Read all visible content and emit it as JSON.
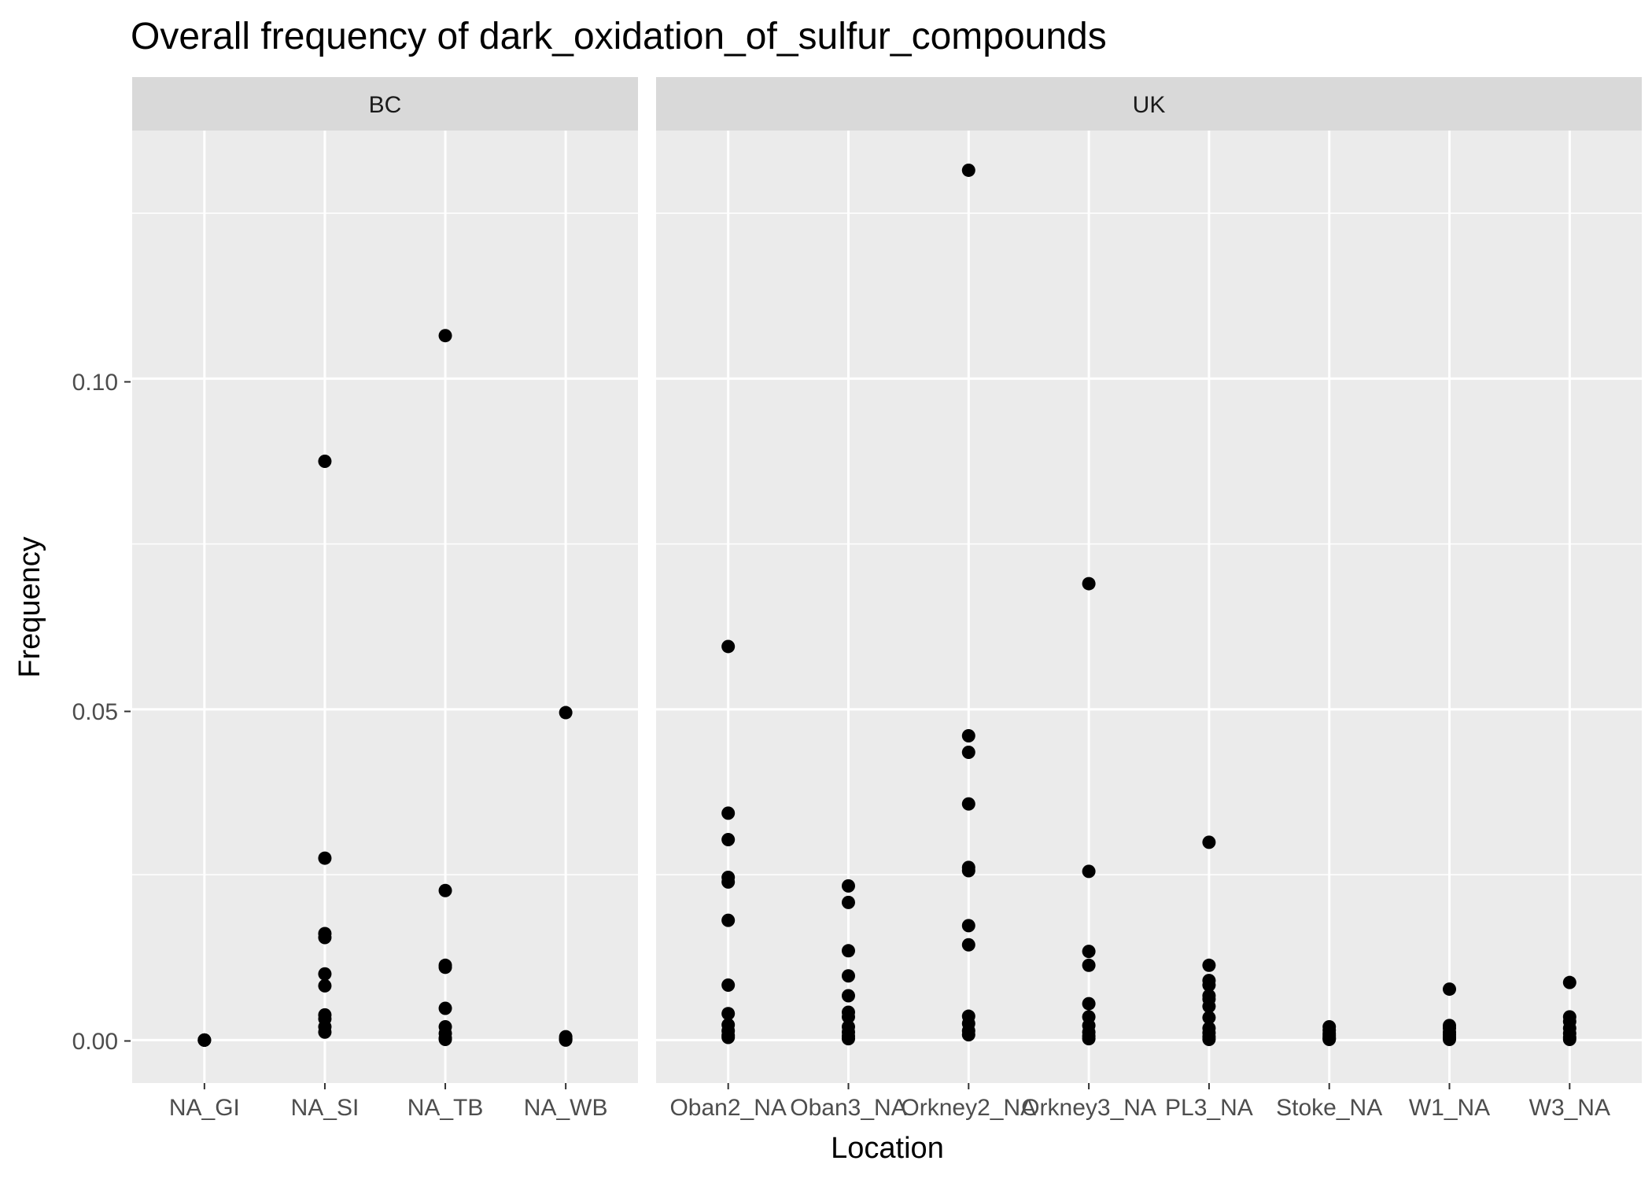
{
  "chart_data": {
    "type": "scatter",
    "title": "Overall frequency of dark_oxidation_of_sulfur_compounds",
    "xlabel": "Location",
    "ylabel": "Frequency",
    "ylim": [
      -0.0065,
      0.1375
    ],
    "y_ticks": [
      0.0,
      0.05,
      0.1
    ],
    "y_tick_labels": [
      "0.00",
      "0.05",
      "0.10"
    ],
    "grid": true,
    "marker_color": "#000000",
    "panel_background": "#ebebeb",
    "strip_background": "#d9d9d9",
    "grid_color": "#ffffff",
    "facets": [
      {
        "label": "BC",
        "categories": [
          "NA_GI",
          "NA_SI",
          "NA_TB",
          "NA_WB"
        ],
        "points": {
          "NA_GI": [
            0.0,
            0.0,
            0.0,
            0.0
          ],
          "NA_SI": [
            0.0875,
            0.0275,
            0.0161,
            0.0155,
            0.01,
            0.0082,
            0.0038,
            0.0032,
            0.002,
            0.0012
          ],
          "NA_TB": [
            0.1065,
            0.0226,
            0.0113,
            0.011,
            0.0048,
            0.002,
            0.001,
            0.0003,
            0.0001
          ],
          "NA_WB": [
            0.0495,
            0.0005,
            0.0002,
            0.0001,
            0.0
          ]
        }
      },
      {
        "label": "UK",
        "categories": [
          "Oban2_NA",
          "Oban3_NA",
          "Orkney2_NA",
          "Orkney3_NA",
          "PL3_NA",
          "Stoke_NA",
          "W1_NA",
          "W3_NA"
        ],
        "points": {
          "Oban2_NA": [
            0.0595,
            0.0343,
            0.0303,
            0.0246,
            0.0239,
            0.0181,
            0.0083,
            0.004,
            0.0023,
            0.0014,
            0.0007,
            0.0004
          ],
          "Oban3_NA": [
            0.0233,
            0.0208,
            0.0135,
            0.0097,
            0.0067,
            0.0042,
            0.0035,
            0.002,
            0.0012,
            0.0006,
            0.0002
          ],
          "Orkney2_NA": [
            0.1315,
            0.046,
            0.0435,
            0.0357,
            0.0261,
            0.0256,
            0.0173,
            0.0144,
            0.0036,
            0.0025,
            0.0014,
            0.0008
          ],
          "Orkney3_NA": [
            0.069,
            0.0255,
            0.0134,
            0.0113,
            0.0055,
            0.0035,
            0.0022,
            0.0012,
            0.0006,
            0.0002
          ],
          "PL3_NA": [
            0.0299,
            0.0113,
            0.009,
            0.0083,
            0.0067,
            0.0062,
            0.0051,
            0.0034,
            0.0018,
            0.0011,
            0.0005,
            0.0001
          ],
          "Stoke_NA": [
            0.002,
            0.0015,
            0.001,
            0.0007,
            0.0004,
            0.0002,
            0.0001
          ],
          "W1_NA": [
            0.0077,
            0.0022,
            0.0018,
            0.0012,
            0.0008,
            0.0004,
            0.0001
          ],
          "W3_NA": [
            0.0087,
            0.0035,
            0.0028,
            0.0018,
            0.001,
            0.0004,
            0.0001
          ]
        }
      }
    ]
  }
}
